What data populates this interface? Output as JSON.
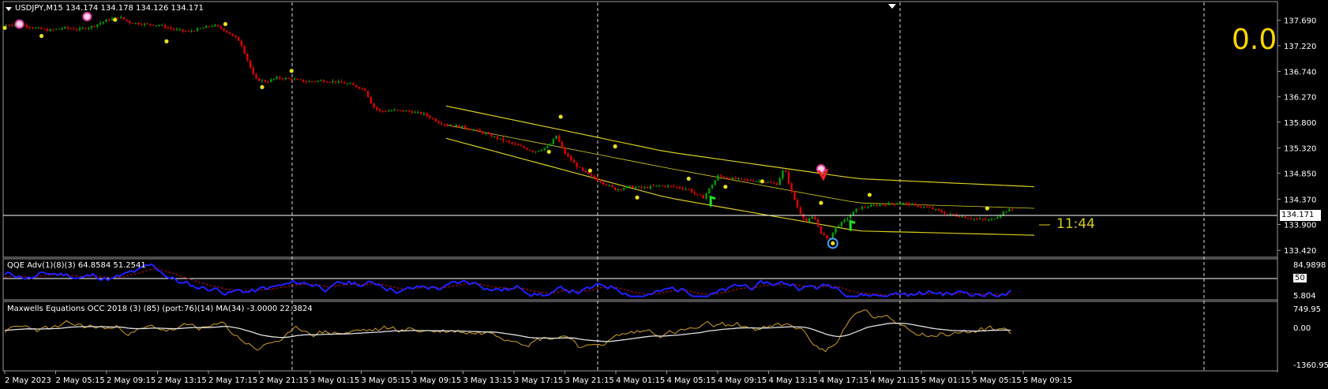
{
  "main_chart": {
    "symbol_label": "USDJPY,M15  134.174 134.178 134.126 134.171",
    "big_value": "0.0",
    "timer": "11:44",
    "current_price": "134.171",
    "price_levels": [
      "137.690",
      "137.220",
      "136.740",
      "136.270",
      "135.800",
      "135.320",
      "134.850",
      "134.370",
      "133.900",
      "133.420"
    ]
  },
  "qqe_panel": {
    "label": "QQE Adv(1)(8)(3) 64.8584 51.2541",
    "levels": [
      "84.9898",
      "50",
      "5.804"
    ]
  },
  "maxwell_panel": {
    "label": "Maxwells Equations OCC 2018 (3) (85) (port:76)(14) MA(34) -3.0000 22.3824",
    "levels": [
      "749.95",
      "0.00",
      "-1360.95"
    ]
  },
  "time_axis": [
    "2 May 2023",
    "2 May 05:15",
    "2 May 09:15",
    "2 May 13:15",
    "2 May 17:15",
    "2 May 21:15",
    "3 May 01:15",
    "3 May 05:15",
    "3 May 09:15",
    "3 May 13:15",
    "3 May 17:15",
    "3 May 21:15",
    "4 May 01:15",
    "4 May 05:15",
    "4 May 09:15",
    "4 May 13:15",
    "4 May 17:15",
    "4 May 21:15",
    "5 May 01:15",
    "5 May 05:15",
    "5 May 09:15"
  ],
  "chart_data": {
    "type": "candlestick",
    "symbol": "USDJPY",
    "timeframe": "M15",
    "ohlc_last": {
      "open": 134.174,
      "high": 134.178,
      "low": 134.126,
      "close": 134.171
    },
    "y_range": [
      133.35,
      137.95
    ],
    "y_ticks": [
      137.69,
      137.22,
      136.74,
      136.27,
      135.8,
      135.32,
      134.85,
      134.37,
      133.9,
      133.42
    ],
    "close_path": [
      [
        0,
        137.6
      ],
      [
        10,
        137.62
      ],
      [
        20,
        137.55
      ],
      [
        30,
        137.5
      ],
      [
        40,
        137.55
      ],
      [
        50,
        137.52
      ],
      [
        60,
        137.58
      ],
      [
        70,
        137.7
      ],
      [
        78,
        137.75
      ],
      [
        85,
        137.65
      ],
      [
        95,
        137.62
      ],
      [
        105,
        137.6
      ],
      [
        115,
        137.52
      ],
      [
        125,
        137.48
      ],
      [
        135,
        137.55
      ],
      [
        142,
        137.6
      ],
      [
        150,
        137.5
      ],
      [
        160,
        137.3
      ],
      [
        165,
        136.95
      ],
      [
        170,
        136.6
      ],
      [
        178,
        136.55
      ],
      [
        185,
        136.62
      ],
      [
        195,
        136.6
      ],
      [
        205,
        136.55
      ],
      [
        215,
        136.57
      ],
      [
        225,
        136.55
      ],
      [
        235,
        136.5
      ],
      [
        245,
        136.4
      ],
      [
        250,
        136.1
      ],
      [
        255,
        136.0
      ],
      [
        265,
        136.02
      ],
      [
        275,
        136.0
      ],
      [
        285,
        135.95
      ],
      [
        295,
        135.8
      ],
      [
        300,
        135.75
      ],
      [
        310,
        135.72
      ],
      [
        320,
        135.65
      ],
      [
        330,
        135.55
      ],
      [
        340,
        135.45
      ],
      [
        350,
        135.35
      ],
      [
        360,
        135.25
      ],
      [
        370,
        135.35
      ],
      [
        375,
        135.55
      ],
      [
        380,
        135.25
      ],
      [
        388,
        135.0
      ],
      [
        395,
        134.85
      ],
      [
        405,
        134.7
      ],
      [
        415,
        134.55
      ],
      [
        425,
        134.6
      ],
      [
        435,
        134.58
      ],
      [
        445,
        134.62
      ],
      [
        455,
        134.6
      ],
      [
        465,
        134.55
      ],
      [
        470,
        134.45
      ],
      [
        475,
        134.4
      ],
      [
        485,
        134.8
      ],
      [
        495,
        134.75
      ],
      [
        505,
        134.72
      ],
      [
        515,
        134.7
      ],
      [
        525,
        134.65
      ],
      [
        530,
        134.95
      ],
      [
        535,
        134.5
      ],
      [
        540,
        134.15
      ],
      [
        545,
        133.95
      ],
      [
        550,
        134.05
      ],
      [
        555,
        133.75
      ],
      [
        560,
        133.6
      ],
      [
        565,
        133.85
      ],
      [
        570,
        133.95
      ],
      [
        580,
        134.2
      ],
      [
        590,
        134.25
      ],
      [
        600,
        134.28
      ],
      [
        610,
        134.3
      ],
      [
        620,
        134.25
      ],
      [
        630,
        134.2
      ],
      [
        640,
        134.1
      ],
      [
        650,
        134.05
      ],
      [
        660,
        134.0
      ],
      [
        670,
        133.98
      ],
      [
        675,
        134.05
      ],
      [
        680,
        134.15
      ],
      [
        685,
        134.17
      ]
    ],
    "channel": {
      "upper": [
        [
          300,
          136.1
        ],
        [
          450,
          135.25
        ],
        [
          580,
          134.75
        ],
        [
          700,
          134.6
        ]
      ],
      "middle": [
        [
          300,
          135.75
        ],
        [
          450,
          134.95
        ],
        [
          580,
          134.3
        ],
        [
          700,
          134.2
        ]
      ],
      "lower": [
        [
          300,
          135.5
        ],
        [
          450,
          134.4
        ],
        [
          580,
          133.78
        ],
        [
          700,
          133.7
        ]
      ]
    },
    "qqe": {
      "y_range": [
        5.804,
        84.9898
      ],
      "level": 50
    },
    "maxwell": {
      "y_range": [
        -1360.95,
        749.95
      ],
      "zero": 0.0
    }
  },
  "colors": {
    "background": "#000000",
    "bull_candle": "#00a000",
    "bear_candle": "#e00000",
    "channel": "#d4cc20",
    "qqe_main": "#2020ff",
    "qqe_signal": "#c01010",
    "maxwell_main": "#d0a020",
    "maxwell_ma": "#e0e0e0",
    "big_value": "#ffd700",
    "grid_dashed": "#d8d8d8"
  }
}
